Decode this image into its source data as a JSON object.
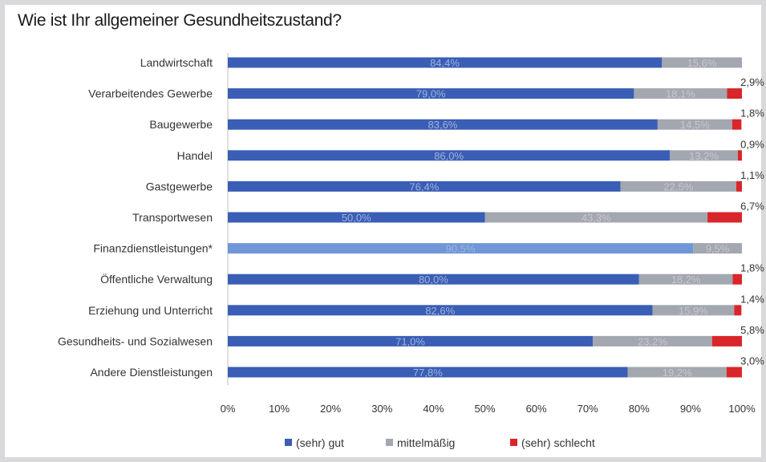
{
  "chart_data": {
    "type": "bar",
    "orientation": "horizontal",
    "stacked": true,
    "title": "Wie ist Ihr allgemeiner Gesundheitszustand?",
    "categories": [
      "Landwirtschaft",
      "Verarbeitendes Gewerbe",
      "Baugewerbe",
      "Handel",
      "Gastgewerbe",
      "Transportwesen",
      "Finanzdienstleistungen*",
      "Öffentliche Verwaltung",
      "Erziehung und Unterricht",
      "Gesundheits- und Sozialwesen",
      "Andere Dienstleistungen"
    ],
    "series": [
      {
        "name": "(sehr) gut",
        "color": "#3a5eb6",
        "values": [
          84.4,
          79.0,
          83.6,
          86.0,
          76.4,
          50.0,
          90.5,
          80.0,
          82.6,
          71.0,
          77.8
        ],
        "labels": [
          "84,4%",
          "79,0%",
          "83,6%",
          "86,0%",
          "76,4%",
          "50,0%",
          "90,5%",
          "80,0%",
          "82,6%",
          "71,0%",
          "77,8%"
        ]
      },
      {
        "name": "mittelmäßig",
        "color": "#a3a7b0",
        "values": [
          15.6,
          18.1,
          14.5,
          13.2,
          22.5,
          43.3,
          9.5,
          18.2,
          15.9,
          23.2,
          19.2
        ],
        "labels": [
          "15,6%",
          "18,1%",
          "14,5%",
          "13,2%",
          "22,5%",
          "43,3%",
          "9,5%",
          "18,2%",
          "15,9%",
          "23,2%",
          "19,2%"
        ]
      },
      {
        "name": "(sehr) schlecht",
        "color": "#d9262b",
        "values": [
          0,
          2.9,
          1.8,
          0.9,
          1.1,
          6.7,
          0,
          1.8,
          1.4,
          5.8,
          3.0
        ],
        "labels": [
          "",
          "2,9%",
          "1,8%",
          "0,9%",
          "1,1%",
          "6,7%",
          "",
          "1,8%",
          "1,4%",
          "5,8%",
          "3,0%"
        ]
      }
    ],
    "highlight_colors": {
      "Finanzdienstleistungen*": "#6f97d8"
    },
    "xlim": [
      0,
      100
    ],
    "x_ticks": [
      "0%",
      "10%",
      "20%",
      "30%",
      "40%",
      "50%",
      "60%",
      "70%",
      "80%",
      "90%",
      "100%"
    ],
    "legend": "bottom",
    "grid": false
  }
}
